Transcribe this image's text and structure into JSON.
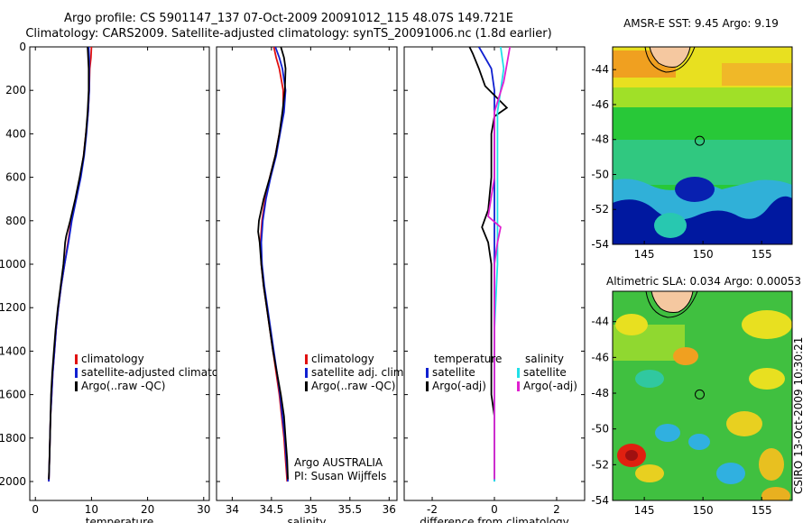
{
  "header": {
    "title_line1": "Argo profile: CS 5901147_137 07-Oct-2009 20091012_115 48.07S 149.721E",
    "title_line2": "Climatology: CARS2009. Satellite-adjusted climatology: synTS_20091006.nc (1.8d earlier)"
  },
  "credit": "CSIRO 13-Oct-2009 10:30:21",
  "colors": {
    "climatology": "#e01010",
    "satellite": "#1020d0",
    "argo": "#000000",
    "sal_satellite": "#20e0e8",
    "sal_argo": "#e020d0",
    "land": "#f5c8a0"
  },
  "chart_data": [
    {
      "type": "line",
      "xlabel": "temperature",
      "ylim": [
        2000,
        0
      ],
      "xlim": [
        -1,
        31
      ],
      "xticks": [
        "0",
        "10",
        "20",
        "30"
      ],
      "yticks": [
        "0",
        "200",
        "400",
        "600",
        "800",
        "1000",
        "1200",
        "1400",
        "1600",
        "1800",
        "2000"
      ],
      "legend": [
        "climatology",
        "satellite-adjusted climatology",
        "Argo(..raw -QC)"
      ],
      "series": [
        {
          "name": "climatology",
          "color": "#e01010",
          "points": [
            [
              10.0,
              0
            ],
            [
              9.9,
              50
            ],
            [
              9.7,
              100
            ],
            [
              9.6,
              200
            ],
            [
              9.4,
              300
            ],
            [
              9.0,
              400
            ],
            [
              8.6,
              500
            ],
            [
              8.0,
              600
            ],
            [
              7.2,
              700
            ],
            [
              6.4,
              800
            ],
            [
              5.8,
              900
            ],
            [
              5.2,
              1000
            ],
            [
              4.6,
              1100
            ],
            [
              4.1,
              1200
            ],
            [
              3.7,
              1300
            ],
            [
              3.4,
              1400
            ],
            [
              3.1,
              1500
            ],
            [
              2.9,
              1600
            ],
            [
              2.7,
              1700
            ],
            [
              2.6,
              1800
            ],
            [
              2.5,
              1900
            ],
            [
              2.4,
              2000
            ]
          ]
        },
        {
          "name": "satellite-adjusted climatology",
          "color": "#1020d0",
          "points": [
            [
              9.5,
              0
            ],
            [
              9.6,
              50
            ],
            [
              9.6,
              100
            ],
            [
              9.6,
              200
            ],
            [
              9.4,
              300
            ],
            [
              9.1,
              400
            ],
            [
              8.7,
              500
            ],
            [
              8.1,
              600
            ],
            [
              7.3,
              700
            ],
            [
              6.5,
              800
            ],
            [
              5.9,
              900
            ],
            [
              5.2,
              1000
            ],
            [
              4.6,
              1100
            ],
            [
              4.1,
              1200
            ],
            [
              3.7,
              1300
            ],
            [
              3.4,
              1400
            ],
            [
              3.1,
              1500
            ],
            [
              2.9,
              1600
            ],
            [
              2.7,
              1700
            ],
            [
              2.6,
              1800
            ],
            [
              2.5,
              1900
            ],
            [
              2.4,
              2000
            ]
          ]
        },
        {
          "name": "Argo(..raw -QC)",
          "color": "#000000",
          "points": [
            [
              9.3,
              0
            ],
            [
              9.4,
              50
            ],
            [
              9.5,
              100
            ],
            [
              9.5,
              200
            ],
            [
              9.3,
              300
            ],
            [
              9.0,
              400
            ],
            [
              8.6,
              500
            ],
            [
              7.9,
              600
            ],
            [
              7.1,
              700
            ],
            [
              6.2,
              800
            ],
            [
              5.5,
              870
            ],
            [
              5.3,
              900
            ],
            [
              5.0,
              1000
            ],
            [
              4.5,
              1100
            ],
            [
              4.0,
              1200
            ],
            [
              3.6,
              1300
            ],
            [
              3.3,
              1400
            ],
            [
              3.0,
              1500
            ],
            [
              2.8,
              1600
            ],
            [
              2.7,
              1700
            ],
            [
              2.6,
              1800
            ],
            [
              2.5,
              1900
            ],
            [
              2.4,
              1990
            ]
          ]
        }
      ]
    },
    {
      "type": "line",
      "xlabel": "salinity",
      "ylim": [
        2000,
        0
      ],
      "xlim": [
        33.8,
        36.1
      ],
      "xticks": [
        "34",
        "34.5",
        "35",
        "35.5",
        "36"
      ],
      "legend": [
        "climatology",
        "satellite adj. clim.",
        "Argo(..raw -QC)"
      ],
      "annotation": [
        "Argo AUSTRALIA",
        "PI: Susan Wijffels"
      ],
      "series": [
        {
          "name": "climatology",
          "color": "#e01010",
          "points": [
            [
              34.53,
              0
            ],
            [
              34.56,
              50
            ],
            [
              34.6,
              100
            ],
            [
              34.65,
              200
            ],
            [
              34.65,
              300
            ],
            [
              34.6,
              400
            ],
            [
              34.55,
              500
            ],
            [
              34.48,
              600
            ],
            [
              34.42,
              700
            ],
            [
              34.38,
              800
            ],
            [
              34.36,
              900
            ],
            [
              34.37,
              1000
            ],
            [
              34.4,
              1100
            ],
            [
              34.44,
              1200
            ],
            [
              34.48,
              1300
            ],
            [
              34.52,
              1400
            ],
            [
              34.56,
              1500
            ],
            [
              34.6,
              1600
            ],
            [
              34.63,
              1700
            ],
            [
              34.66,
              1800
            ],
            [
              34.68,
              1900
            ],
            [
              34.7,
              2000
            ]
          ]
        },
        {
          "name": "satellite adj. clim.",
          "color": "#1020d0",
          "points": [
            [
              34.55,
              0
            ],
            [
              34.6,
              50
            ],
            [
              34.64,
              100
            ],
            [
              34.68,
              200
            ],
            [
              34.66,
              300
            ],
            [
              34.61,
              400
            ],
            [
              34.56,
              500
            ],
            [
              34.49,
              600
            ],
            [
              34.43,
              700
            ],
            [
              34.39,
              800
            ],
            [
              34.37,
              900
            ],
            [
              34.38,
              1000
            ],
            [
              34.41,
              1100
            ],
            [
              34.45,
              1200
            ],
            [
              34.49,
              1300
            ],
            [
              34.53,
              1400
            ],
            [
              34.57,
              1500
            ],
            [
              34.61,
              1600
            ],
            [
              34.64,
              1700
            ],
            [
              34.67,
              1800
            ],
            [
              34.69,
              1900
            ],
            [
              34.71,
              2000
            ]
          ]
        },
        {
          "name": "Argo(..raw -QC)",
          "color": "#000000",
          "points": [
            [
              34.62,
              0
            ],
            [
              34.66,
              50
            ],
            [
              34.68,
              100
            ],
            [
              34.67,
              200
            ],
            [
              34.64,
              300
            ],
            [
              34.6,
              400
            ],
            [
              34.55,
              500
            ],
            [
              34.48,
              600
            ],
            [
              34.4,
              700
            ],
            [
              34.34,
              800
            ],
            [
              34.33,
              850
            ],
            [
              34.35,
              900
            ],
            [
              34.37,
              1000
            ],
            [
              34.4,
              1100
            ],
            [
              34.44,
              1200
            ],
            [
              34.48,
              1300
            ],
            [
              34.52,
              1400
            ],
            [
              34.57,
              1500
            ],
            [
              34.62,
              1600
            ],
            [
              34.66,
              1700
            ],
            [
              34.68,
              1800
            ],
            [
              34.7,
              1900
            ],
            [
              34.71,
              1990
            ]
          ]
        }
      ]
    },
    {
      "type": "line",
      "xlabel": "difference from climatology",
      "ylim": [
        2000,
        0
      ],
      "xlim": [
        -2.9,
        2.9
      ],
      "xticks": [
        "-2",
        "0",
        "2"
      ],
      "legend": [
        "temperature",
        "satellite",
        "Argo(-adj)",
        "salinity",
        "satellite",
        "Argo(-adj)"
      ],
      "series": [
        {
          "name": "temperature satellite",
          "color": "#1020d0",
          "points": [
            [
              -0.5,
              0
            ],
            [
              -0.3,
              50
            ],
            [
              -0.1,
              100
            ],
            [
              0.0,
              200
            ],
            [
              0.0,
              300
            ],
            [
              0.0,
              500
            ],
            [
              0.0,
              800
            ],
            [
              0.0,
              1000
            ],
            [
              0.0,
              1500
            ],
            [
              0.0,
              2000
            ]
          ]
        },
        {
          "name": "temperature Argo(-adj)",
          "color": "#000000",
          "points": [
            [
              -0.8,
              0
            ],
            [
              -0.7,
              30
            ],
            [
              -0.5,
              100
            ],
            [
              -0.3,
              180
            ],
            [
              0.4,
              280
            ],
            [
              0.0,
              320
            ],
            [
              -0.1,
              400
            ],
            [
              -0.1,
              600
            ],
            [
              -0.2,
              750
            ],
            [
              -0.4,
              830
            ],
            [
              -0.2,
              900
            ],
            [
              -0.1,
              1000
            ],
            [
              -0.1,
              1200
            ],
            [
              -0.1,
              1400
            ],
            [
              -0.1,
              1600
            ],
            [
              0.0,
              1700
            ],
            [
              0.0,
              1800
            ],
            [
              0.0,
              1990
            ]
          ]
        },
        {
          "name": "salinity satellite",
          "color": "#20e0e8",
          "points": [
            [
              0.2,
              0
            ],
            [
              0.3,
              100
            ],
            [
              0.2,
              200
            ],
            [
              0.1,
              300
            ],
            [
              0.1,
              500
            ],
            [
              0.1,
              800
            ],
            [
              0.1,
              1000
            ],
            [
              0.0,
              1300
            ],
            [
              0.0,
              1600
            ],
            [
              0.0,
              2000
            ]
          ]
        },
        {
          "name": "salinity Argo(-adj)",
          "color": "#e020d0",
          "points": [
            [
              0.5,
              0
            ],
            [
              0.4,
              80
            ],
            [
              0.3,
              160
            ],
            [
              0.0,
              300
            ],
            [
              0.0,
              400
            ],
            [
              0.0,
              600
            ],
            [
              -0.2,
              780
            ],
            [
              0.2,
              830
            ],
            [
              0.1,
              900
            ],
            [
              0.0,
              1000
            ],
            [
              0.0,
              1200
            ],
            [
              0.0,
              1400
            ],
            [
              0.0,
              1600
            ],
            [
              0.0,
              1700
            ],
            [
              0.0,
              1800
            ],
            [
              0.0,
              1990
            ]
          ]
        }
      ]
    }
  ],
  "maps": [
    {
      "title": "AMSR-E SST: 9.45 Argo: 9.19",
      "xticks": [
        "145",
        "150",
        "155"
      ],
      "yticks": [
        "-44",
        "-46",
        "-48",
        "-50",
        "-52",
        "-54"
      ],
      "marker": [
        149.72,
        -48.07
      ]
    },
    {
      "title": "Altimetric SLA: 0.034 Argo: 0.00053",
      "xticks": [
        "145",
        "150",
        "155"
      ],
      "yticks": [
        "-44",
        "-46",
        "-48",
        "-50",
        "-52",
        "-54"
      ],
      "marker": [
        149.72,
        -48.07
      ]
    }
  ]
}
